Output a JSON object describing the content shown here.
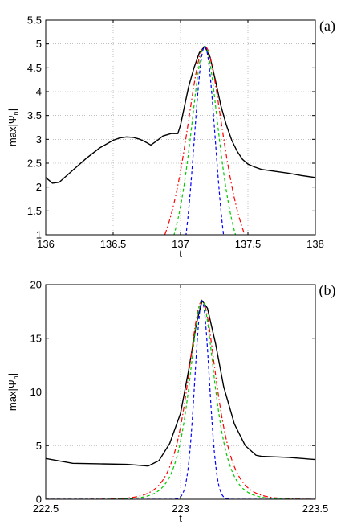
{
  "chart_data": [
    {
      "type": "line",
      "panel_label": "(a)",
      "xlabel": "t",
      "ylabel": "max|Ψ",
      "ylabel_sub": "n",
      "ylabel_end": "|",
      "xlim": [
        136,
        138
      ],
      "ylim": [
        1,
        5.5
      ],
      "xticks": [
        136,
        136.5,
        137,
        137.5,
        138
      ],
      "xtick_labels": [
        "136",
        "136.5",
        "137",
        "137.5",
        "138"
      ],
      "yticks": [
        1,
        1.5,
        2,
        2.5,
        3,
        3.5,
        4,
        4.5,
        5,
        5.5
      ],
      "ytick_labels": [
        "1",
        "1.5",
        "2",
        "2.5",
        "3",
        "3.5",
        "4",
        "4.5",
        "5",
        "5.5"
      ],
      "grid": true,
      "series": [
        {
          "color": "#000000",
          "dash": "",
          "width": 1.4,
          "x": [
            136.0,
            136.05,
            136.1,
            136.2,
            136.3,
            136.4,
            136.5,
            136.55,
            136.6,
            136.65,
            136.7,
            136.75,
            136.78,
            136.82,
            136.87,
            136.93,
            136.98,
            137.0,
            137.03,
            137.06,
            137.1,
            137.14,
            137.18,
            137.22,
            137.26,
            137.3,
            137.34,
            137.38,
            137.42,
            137.46,
            137.5,
            137.55,
            137.6,
            137.7,
            137.8,
            137.9,
            138.0
          ],
          "y": [
            2.2,
            2.08,
            2.1,
            2.35,
            2.6,
            2.82,
            2.98,
            3.03,
            3.05,
            3.04,
            3.0,
            2.93,
            2.88,
            2.96,
            3.07,
            3.12,
            3.12,
            3.3,
            3.7,
            4.1,
            4.5,
            4.82,
            4.95,
            4.72,
            4.22,
            3.7,
            3.3,
            2.98,
            2.75,
            2.58,
            2.48,
            2.42,
            2.37,
            2.33,
            2.29,
            2.24,
            2.2
          ]
        },
        {
          "color": "#ff0000",
          "dash": "6,3,1.5,3",
          "width": 1.2,
          "fn": "sech",
          "center": 137.18,
          "amp": 4.95,
          "width_param": 0.13
        },
        {
          "color": "#00cc00",
          "dash": "4,3",
          "width": 1.2,
          "fn": "sech",
          "center": 137.18,
          "amp": 4.95,
          "width_param": 0.1
        },
        {
          "color": "#0000ff",
          "dash": "4,3",
          "width": 1.2,
          "fn": "gauss",
          "center": 137.18,
          "amp": 4.95,
          "width_param": 0.11
        }
      ]
    },
    {
      "type": "line",
      "panel_label": "(b)",
      "xlabel": "t",
      "ylabel": "max|Ψ",
      "ylabel_sub": "n",
      "ylabel_end": "|",
      "xlim": [
        222.5,
        223.5
      ],
      "ylim": [
        0,
        20
      ],
      "xticks": [
        222.5,
        223,
        223.5
      ],
      "xtick_labels": [
        "222.5",
        "223",
        "223.5"
      ],
      "yticks": [
        0,
        5,
        10,
        15,
        20
      ],
      "ytick_labels": [
        "0",
        "5",
        "10",
        "15",
        "20"
      ],
      "grid": true,
      "series": [
        {
          "color": "#000000",
          "dash": "",
          "width": 1.4,
          "x": [
            222.5,
            222.6,
            222.7,
            222.8,
            222.88,
            222.92,
            222.96,
            223.0,
            223.03,
            223.06,
            223.08,
            223.1,
            223.13,
            223.16,
            223.2,
            223.24,
            223.28,
            223.3,
            223.4,
            223.5
          ],
          "y": [
            3.8,
            3.35,
            3.3,
            3.25,
            3.1,
            3.6,
            5.2,
            8.0,
            12.0,
            16.5,
            18.5,
            17.8,
            14.5,
            10.5,
            7.0,
            5.0,
            4.1,
            4.0,
            3.9,
            3.7
          ]
        },
        {
          "color": "#ff0000",
          "dash": "6,3,1.5,3",
          "width": 1.2,
          "fn": "sech",
          "center": 223.08,
          "amp": 18.5,
          "width_param": 0.048
        },
        {
          "color": "#00cc00",
          "dash": "4,3",
          "width": 1.2,
          "fn": "sech",
          "center": 223.08,
          "amp": 18.5,
          "width_param": 0.042
        },
        {
          "color": "#0000ff",
          "dash": "4,3",
          "width": 1.2,
          "fn": "gauss",
          "center": 223.08,
          "amp": 18.5,
          "width_param": 0.038
        }
      ]
    }
  ]
}
